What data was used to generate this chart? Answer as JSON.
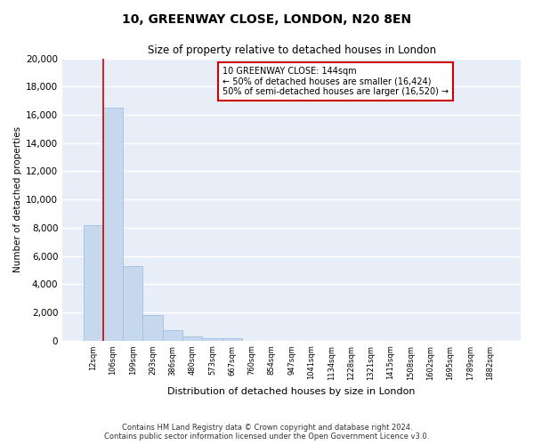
{
  "title": "10, GREENWAY CLOSE, LONDON, N20 8EN",
  "subtitle": "Size of property relative to detached houses in London",
  "xlabel": "Distribution of detached houses by size in London",
  "ylabel": "Number of detached properties",
  "bar_color": "#c5d8ed",
  "bar_edge_color": "#a0c0de",
  "background_color": "#e8eef8",
  "fig_background": "#ffffff",
  "grid_color": "#ffffff",
  "vline_color": "#cc0000",
  "categories": [
    "12sqm",
    "106sqm",
    "199sqm",
    "293sqm",
    "386sqm",
    "480sqm",
    "573sqm",
    "667sqm",
    "760sqm",
    "854sqm",
    "947sqm",
    "1041sqm",
    "1134sqm",
    "1228sqm",
    "1321sqm",
    "1415sqm",
    "1508sqm",
    "1602sqm",
    "1695sqm",
    "1789sqm",
    "1882sqm"
  ],
  "values": [
    8200,
    16500,
    5300,
    1800,
    750,
    300,
    200,
    150,
    0,
    0,
    0,
    0,
    0,
    0,
    0,
    0,
    0,
    0,
    0,
    0,
    0
  ],
  "ylim": [
    0,
    20000
  ],
  "yticks": [
    0,
    2000,
    4000,
    6000,
    8000,
    10000,
    12000,
    14000,
    16000,
    18000,
    20000
  ],
  "annotation_title": "10 GREENWAY CLOSE: 144sqm",
  "annotation_line1": "← 50% of detached houses are smaller (16,424)",
  "annotation_line2": "50% of semi-detached houses are larger (16,520) →",
  "annotation_box_color": "#ffffff",
  "annotation_box_edge": "#cc0000",
  "vline_bin": 1,
  "footnote1": "Contains HM Land Registry data © Crown copyright and database right 2024.",
  "footnote2": "Contains public sector information licensed under the Open Government Licence v3.0."
}
